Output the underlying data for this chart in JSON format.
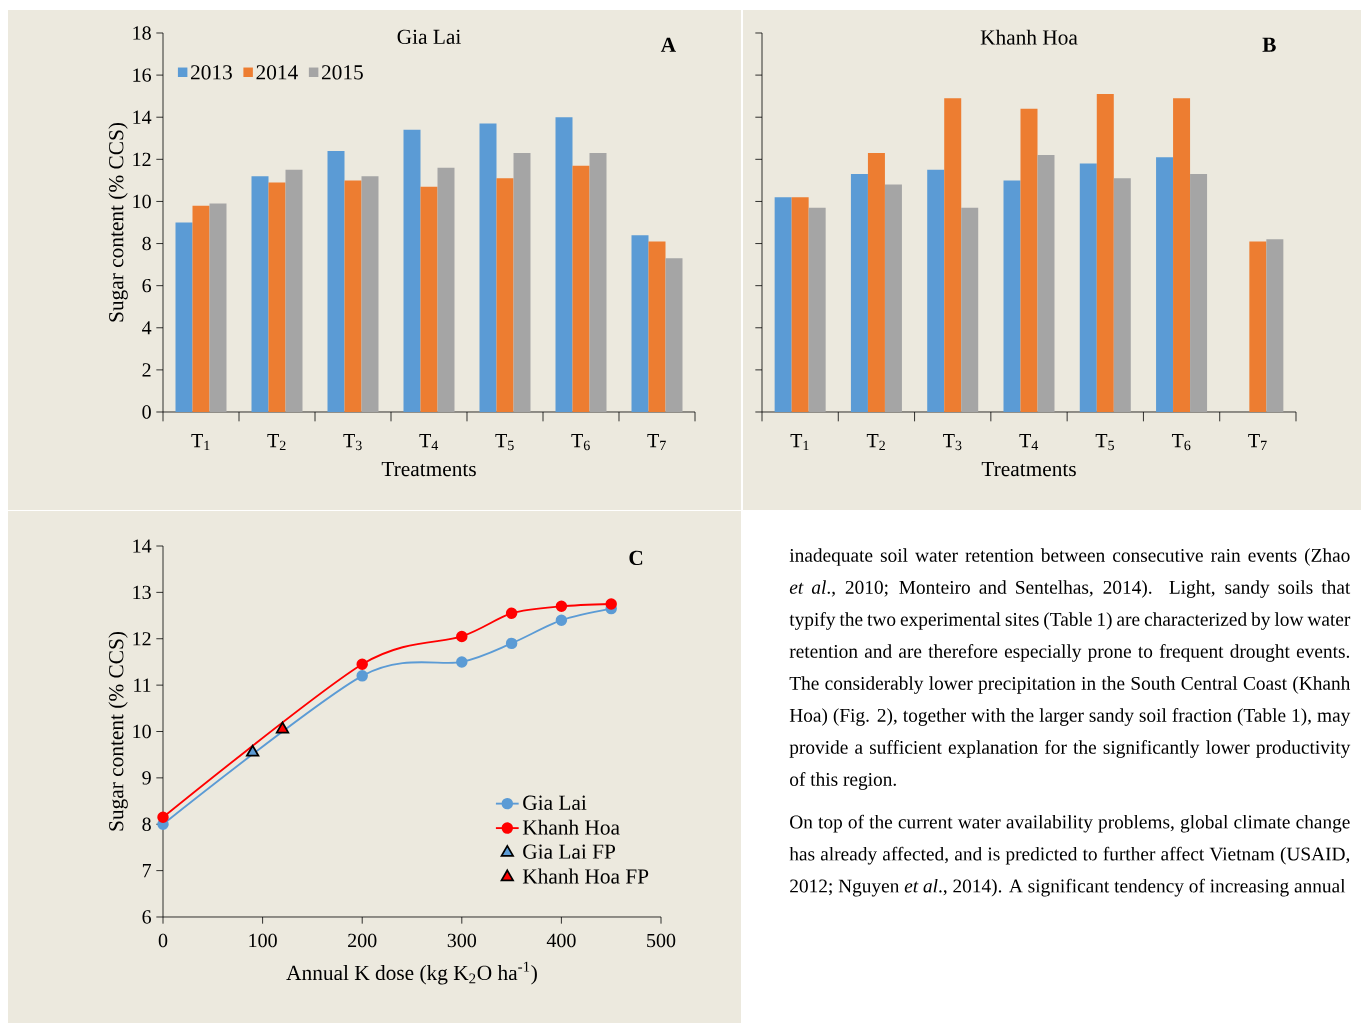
{
  "chart_data": [
    {
      "type": "bar",
      "title": "Gia Lai",
      "xlabel": "Treatments",
      "ylabel": "Sugar content (% CCS)",
      "annotations": [
        "A"
      ],
      "legend": "top left",
      "categories": [
        "T$_{1}$",
        "T$_{2}$",
        "T$_{3}$",
        "T$_{4}$",
        "T$_{5}$",
        "T$_{6}$",
        "T$_{7}$"
      ],
      "ylim": [
        0,
        18
      ],
      "yticks": [
        0,
        2,
        4,
        6,
        8,
        10,
        12,
        14,
        16,
        18
      ],
      "series": [
        {
          "name": "2013",
          "color": "#5b9bd5",
          "values": [
            9.0,
            11.2,
            12.4,
            13.4,
            13.7,
            14.0,
            8.4
          ]
        },
        {
          "name": "2014",
          "color": "#ed7d31",
          "values": [
            9.8,
            10.9,
            11.0,
            10.7,
            11.1,
            11.7,
            8.1
          ]
        },
        {
          "name": "2015",
          "color": "#a5a5a5",
          "values": [
            9.9,
            11.5,
            11.2,
            11.6,
            12.3,
            12.3,
            7.3
          ]
        }
      ]
    },
    {
      "type": "bar",
      "title": "Khanh Hoa",
      "xlabel": "Treatments",
      "annotations": [
        "B"
      ],
      "tick_labels": "x",
      "categories": [
        "T$_{1}$",
        "T$_{2}$",
        "T$_{3}$",
        "T$_{4}$",
        "T$_{5}$",
        "T$_{6}$",
        "T$_{7}$"
      ],
      "ylim": [
        0,
        18
      ],
      "yticks": [
        0,
        2,
        4,
        6,
        8,
        10,
        12,
        14,
        16,
        18
      ],
      "series": [
        {
          "color": "#5b9bd5",
          "values": [
            10.2,
            11.3,
            11.5,
            11.0,
            11.8,
            12.1,
            null
          ]
        },
        {
          "color": "#ed7d31",
          "values": [
            10.2,
            12.3,
            14.9,
            14.4,
            15.1,
            14.9,
            8.1
          ]
        },
        {
          "color": "#a5a5a5",
          "values": [
            9.7,
            10.8,
            9.7,
            12.2,
            11.1,
            11.3,
            8.2
          ]
        }
      ]
    },
    {
      "type": "line",
      "xlabel": "Annual K dose (kg K$_{2}$O ha$^{-1}$)",
      "ylabel": "Sugar content (% CCS)",
      "annotations": [
        "C"
      ],
      "legend": "bottom right",
      "marker": "circle",
      "xlim": [
        0,
        500
      ],
      "xticks": [
        0,
        100,
        200,
        300,
        400,
        500
      ],
      "ylim": [
        6,
        14
      ],
      "yticks": [
        6,
        7,
        8,
        9,
        10,
        11,
        12,
        13,
        14
      ],
      "series": [
        {
          "name": "Gia Lai",
          "color": "#5b9bd5",
          "x": [
            0,
            200,
            300,
            350,
            400,
            450
          ],
          "values": [
            8.0,
            11.2,
            11.5,
            11.9,
            12.4,
            12.65
          ]
        },
        {
          "name": "Khanh Hoa",
          "color": "#ff0000",
          "x": [
            0,
            200,
            300,
            350,
            400,
            450
          ],
          "values": [
            8.15,
            11.45,
            12.05,
            12.55,
            12.7,
            12.75
          ]
        },
        {
          "name": "Gia Lai FP",
          "type": "scatter",
          "marker": "triangle",
          "color": "#5b9bd5",
          "x": [
            90
          ],
          "values": [
            9.55
          ]
        },
        {
          "name": "Khanh Hoa FP",
          "type": "scatter",
          "marker": "triangle",
          "color": "#ff0000",
          "x": [
            120
          ],
          "values": [
            10.05
          ]
        }
      ]
    },
    {
      "type": "other",
      "annotations": [
        "inadequate soil water retention between consecutive rain events (Zhao *et al*., 2010; Monteiro and Sentelhas, 2014). Light, sandy soils that typify the two experimental sites (Table 1) are characterized by low water retention and are therefore especially prone to frequent drought events. The considerably lower precipitation in the South Central Coast (Khanh Hoa) (Fig. 2), together with the larger sandy soil fraction (Table 1), may provide a sufficient explanation for the significantly lower productivity of this region.",
        "On top of the current water availability problems, global climate change has already affected, and is predicted to further affect Vietnam (USAID, 2012; Nguyen *et al*., 2014). A significant tendency of increasing annual"
      ]
    }
  ]
}
